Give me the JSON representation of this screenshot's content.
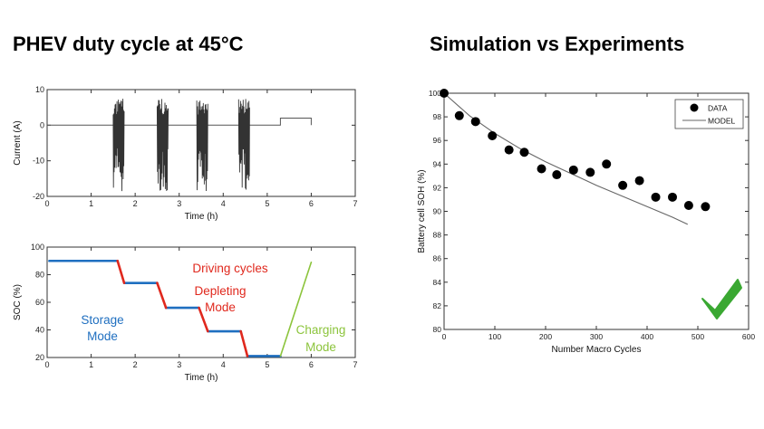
{
  "titles": {
    "left": "PHEV duty cycle at 45°C",
    "right": "Simulation vs Experiments"
  },
  "colors": {
    "storage": "#1f6fc0",
    "driving": "#e0281d",
    "charging": "#8cc43c",
    "check": "#3aa832",
    "trace": "#555555"
  },
  "chart_data": [
    {
      "id": "current",
      "type": "line",
      "title": "",
      "xlabel": "Time (h)",
      "ylabel": "Current (A)",
      "xlim": [
        0,
        7
      ],
      "ylim": [
        -20,
        10
      ],
      "xticks": [
        0,
        1,
        2,
        3,
        4,
        5,
        6,
        7
      ],
      "yticks": [
        10,
        0,
        -10,
        -20
      ],
      "baseline": [
        [
          0,
          0
        ],
        [
          5.3,
          0
        ],
        [
          5.3,
          2
        ],
        [
          6,
          2
        ],
        [
          6,
          0
        ]
      ],
      "bursts": [
        {
          "start": 1.5,
          "end": 1.75,
          "max": 7.5,
          "min": -18.5
        },
        {
          "start": 2.5,
          "end": 2.75,
          "max": 7.5,
          "min": -18.5
        },
        {
          "start": 3.4,
          "end": 3.65,
          "max": 7.5,
          "min": -18.5
        },
        {
          "start": 4.35,
          "end": 4.6,
          "max": 7.5,
          "min": -18.5
        }
      ]
    },
    {
      "id": "soc",
      "type": "line",
      "title": "",
      "xlabel": "Time (h)",
      "ylabel": "SOC (%)",
      "xlim": [
        0,
        7
      ],
      "ylim": [
        20,
        100
      ],
      "xticks": [
        0,
        1,
        2,
        3,
        4,
        5,
        6,
        7
      ],
      "yticks": [
        100,
        80,
        60,
        40,
        20
      ],
      "series": [
        {
          "name": "Storage Mode",
          "color": "storage",
          "segments": [
            [
              [
                0.05,
                90
              ],
              [
                1.6,
                90
              ]
            ],
            [
              [
                1.75,
                74
              ],
              [
                2.5,
                74
              ]
            ],
            [
              [
                2.7,
                56
              ],
              [
                3.45,
                56
              ]
            ],
            [
              [
                3.65,
                39
              ],
              [
                4.4,
                39
              ]
            ],
            [
              [
                4.55,
                21
              ],
              [
                5.3,
                21
              ]
            ]
          ]
        },
        {
          "name": "Driving cycles",
          "color": "driving",
          "segments": [
            [
              [
                1.6,
                90
              ],
              [
                1.75,
                74
              ]
            ],
            [
              [
                2.5,
                74
              ],
              [
                2.7,
                56
              ]
            ],
            [
              [
                3.45,
                56
              ],
              [
                3.65,
                39
              ]
            ],
            [
              [
                4.4,
                39
              ],
              [
                4.55,
                21
              ]
            ]
          ]
        },
        {
          "name": "Charging Mode",
          "color": "charging",
          "segments": [
            [
              [
                5.3,
                21
              ],
              [
                6.0,
                89
              ]
            ]
          ]
        }
      ],
      "annotations": {
        "storage": [
          "Storage",
          "Mode"
        ],
        "driving": "Driving cycles",
        "depleting": [
          "Depleting",
          "Mode"
        ],
        "charging": [
          "Charging",
          "Mode"
        ]
      }
    },
    {
      "id": "soh",
      "type": "scatter",
      "title": "",
      "xlabel": "Number Macro Cycles",
      "ylabel": "Battery cell SOH (%)",
      "xlim": [
        0,
        600
      ],
      "ylim": [
        80,
        100
      ],
      "xticks": [
        0,
        100,
        200,
        300,
        400,
        500,
        600
      ],
      "yticks": [
        100,
        98,
        96,
        94,
        92,
        90,
        88,
        86,
        84,
        82,
        80
      ],
      "legend_position": "top-right",
      "legend": [
        "DATA",
        "MODEL"
      ],
      "series": [
        {
          "name": "DATA",
          "type": "scatter",
          "x": [
            0,
            30,
            62,
            95,
            128,
            158,
            192,
            222,
            255,
            288,
            320,
            352,
            385,
            417,
            450,
            482,
            515
          ],
          "y": [
            100,
            98.1,
            97.6,
            96.4,
            95.2,
            95.0,
            93.6,
            93.1,
            93.5,
            93.3,
            94.0,
            92.2,
            92.6,
            91.2,
            91.2,
            90.5,
            90.4
          ]
        },
        {
          "name": "MODEL",
          "type": "line",
          "x": [
            0,
            50,
            100,
            150,
            200,
            250,
            300,
            350,
            400,
            450,
            480
          ],
          "y": [
            100,
            98.1,
            96.6,
            95.3,
            94.2,
            93.2,
            92.2,
            91.3,
            90.4,
            89.5,
            88.9
          ]
        }
      ]
    }
  ]
}
